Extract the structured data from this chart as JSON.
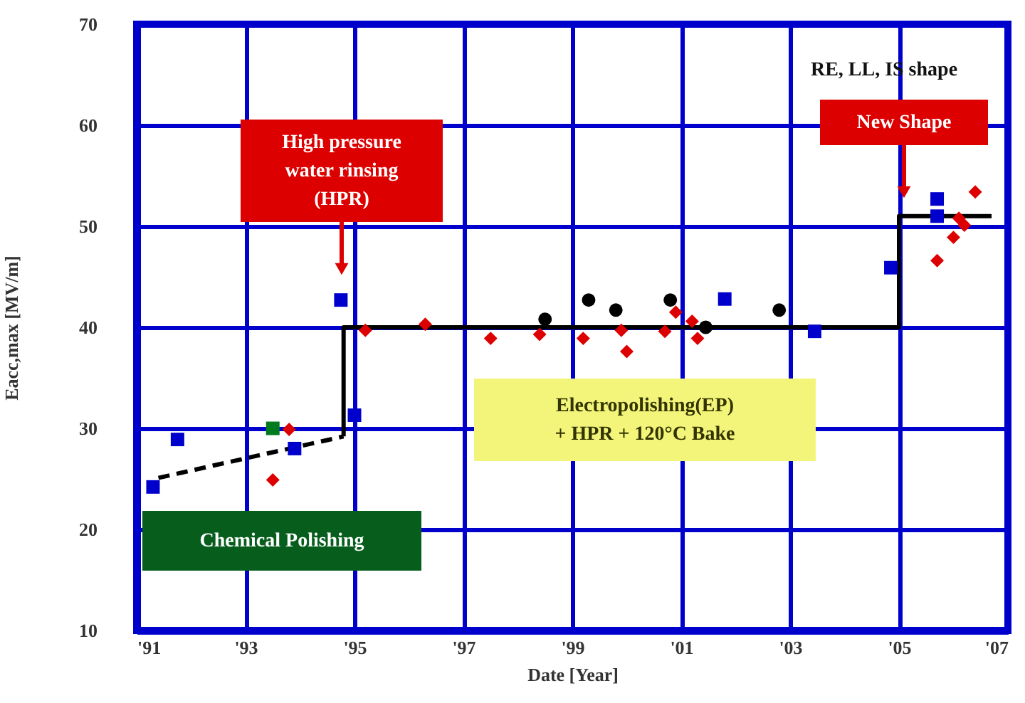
{
  "chart_data": {
    "type": "scatter",
    "xlabel": "Date [Year]",
    "ylabel": "Eacc,max [MV/m]",
    "xlim": [
      1991,
      2007
    ],
    "xticks": [
      {
        "value": 1991,
        "label": "'91"
      },
      {
        "value": 1993,
        "label": "'93"
      },
      {
        "value": 1995,
        "label": "'95"
      },
      {
        "value": 1997,
        "label": "'97"
      },
      {
        "value": 1999,
        "label": "'99"
      },
      {
        "value": 2001,
        "label": "'01"
      },
      {
        "value": 2003,
        "label": "'03"
      },
      {
        "value": 2005,
        "label": "'05"
      },
      {
        "value": 2007,
        "label": "'07"
      }
    ],
    "ylim": [
      10,
      70
    ],
    "yticks": [
      10,
      20,
      30,
      40,
      50,
      60,
      70
    ],
    "grid": true,
    "series": [
      {
        "color": "#0000cc",
        "marker": "square",
        "x": [
          1991.3,
          1993.9,
          1995.0,
          2005.7,
          2005.7,
          2004.85,
          2003.45,
          1991.75,
          1994.75,
          2001.8
        ],
        "values": [
          24.2,
          28.0,
          31.3,
          52.7,
          51.0,
          45.9,
          39.6,
          28.9,
          42.7,
          42.8
        ]
      },
      {
        "color": "#000000",
        "marker": "circle",
        "x": [
          1998.5,
          1999.3,
          1999.8,
          2000.8,
          2001.45,
          2002.8
        ],
        "values": [
          40.8,
          42.7,
          41.7,
          42.7,
          40.0,
          41.7
        ]
      },
      {
        "color": "#dd0000",
        "marker": "diamond",
        "x": [
          1993.5,
          1993.8,
          1995.2,
          1996.3,
          1997.5,
          1998.4,
          1999.2,
          1999.9,
          2000.0,
          2000.9,
          2001.2,
          2001.3,
          2000.7,
          2005.7,
          2006.0,
          2006.1,
          2006.2,
          2006.4
        ],
        "values": [
          24.9,
          29.9,
          39.7,
          40.3,
          38.9,
          39.3,
          38.9,
          39.7,
          37.6,
          41.5,
          40.6,
          38.9,
          39.6,
          46.6,
          48.9,
          50.8,
          50.1,
          53.4
        ]
      },
      {
        "color": "#007a1e",
        "marker": "square",
        "x": [
          1993.5
        ],
        "values": [
          30.0
        ]
      },
      {
        "type": "line",
        "color": "#000000",
        "line_style": "dashed",
        "x": [
          1991.4,
          1994.8
        ],
        "values": [
          25.1,
          29.2
        ]
      },
      {
        "type": "line",
        "color": "#000000",
        "line_style": "solid",
        "x": [
          1994.8,
          1994.8,
          2005.0,
          2005.0,
          2006.7
        ],
        "values": [
          29.2,
          40.0,
          40.0,
          51.0,
          51.0
        ]
      }
    ],
    "annotations": [
      "High pressure\nwater rinsing\n(HPR)",
      "New Shape",
      "RE, LL, IS shape",
      "Electropolishing(EP)\n+ HPR + 120°C Bake",
      "Chemical Polishing"
    ]
  }
}
